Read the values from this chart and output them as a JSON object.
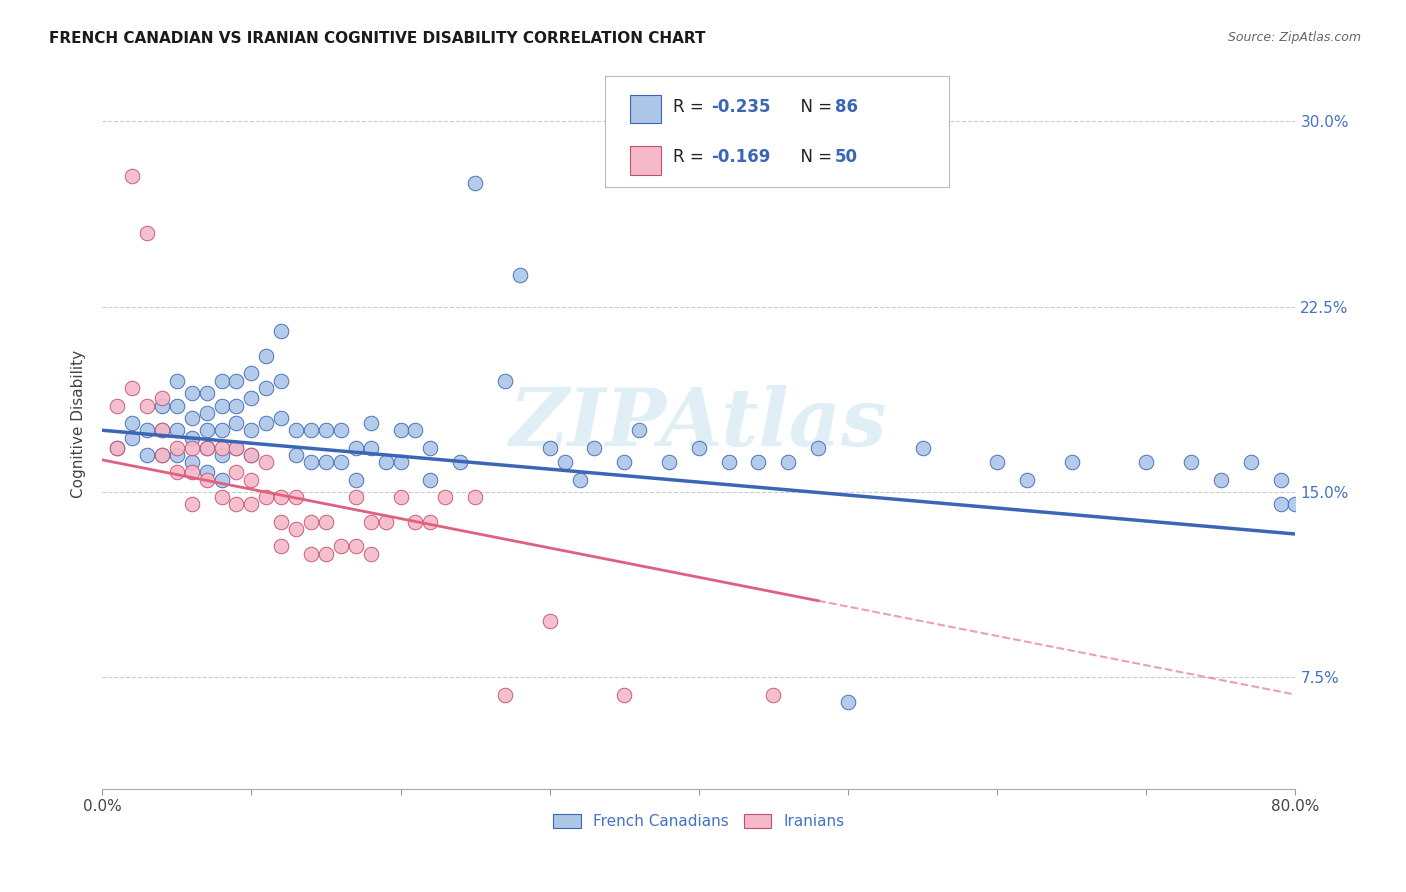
{
  "title": "FRENCH CANADIAN VS IRANIAN COGNITIVE DISABILITY CORRELATION CHART",
  "source": "Source: ZipAtlas.com",
  "ylabel": "Cognitive Disability",
  "ytick_labels": [
    "7.5%",
    "15.0%",
    "22.5%",
    "30.0%"
  ],
  "ytick_values": [
    0.075,
    0.15,
    0.225,
    0.3
  ],
  "xlim": [
    0.0,
    0.8
  ],
  "ylim": [
    0.03,
    0.325
  ],
  "legend_french_r": "-0.235",
  "legend_french_n": "86",
  "legend_iranian_r": "-0.169",
  "legend_iranian_n": "50",
  "french_color": "#adc6e8",
  "iranian_color": "#f5b8c8",
  "french_line_color": "#3a66b5",
  "iranian_line_color": "#e06080",
  "french_line_start_y": 0.175,
  "french_line_end_y": 0.133,
  "iranian_line_start_y": 0.163,
  "iranian_line_end_y": 0.068,
  "french_scatter_x": [
    0.01,
    0.02,
    0.02,
    0.03,
    0.03,
    0.04,
    0.04,
    0.04,
    0.05,
    0.05,
    0.05,
    0.05,
    0.06,
    0.06,
    0.06,
    0.06,
    0.07,
    0.07,
    0.07,
    0.07,
    0.07,
    0.08,
    0.08,
    0.08,
    0.08,
    0.08,
    0.09,
    0.09,
    0.09,
    0.09,
    0.1,
    0.1,
    0.1,
    0.1,
    0.11,
    0.11,
    0.11,
    0.12,
    0.12,
    0.12,
    0.13,
    0.13,
    0.14,
    0.14,
    0.15,
    0.15,
    0.16,
    0.16,
    0.17,
    0.17,
    0.18,
    0.18,
    0.19,
    0.2,
    0.2,
    0.21,
    0.22,
    0.22,
    0.24,
    0.25,
    0.27,
    0.28,
    0.3,
    0.31,
    0.32,
    0.33,
    0.35,
    0.36,
    0.38,
    0.4,
    0.42,
    0.44,
    0.46,
    0.48,
    0.5,
    0.55,
    0.6,
    0.62,
    0.65,
    0.7,
    0.73,
    0.75,
    0.77,
    0.79,
    0.79,
    0.8
  ],
  "french_scatter_y": [
    0.168,
    0.172,
    0.178,
    0.175,
    0.165,
    0.185,
    0.175,
    0.165,
    0.195,
    0.185,
    0.175,
    0.165,
    0.19,
    0.18,
    0.172,
    0.162,
    0.19,
    0.182,
    0.175,
    0.168,
    0.158,
    0.195,
    0.185,
    0.175,
    0.165,
    0.155,
    0.195,
    0.185,
    0.178,
    0.168,
    0.198,
    0.188,
    0.175,
    0.165,
    0.205,
    0.192,
    0.178,
    0.215,
    0.195,
    0.18,
    0.175,
    0.165,
    0.175,
    0.162,
    0.175,
    0.162,
    0.175,
    0.162,
    0.168,
    0.155,
    0.178,
    0.168,
    0.162,
    0.175,
    0.162,
    0.175,
    0.168,
    0.155,
    0.162,
    0.275,
    0.195,
    0.238,
    0.168,
    0.162,
    0.155,
    0.168,
    0.162,
    0.175,
    0.162,
    0.168,
    0.162,
    0.162,
    0.162,
    0.168,
    0.065,
    0.168,
    0.162,
    0.155,
    0.162,
    0.162,
    0.162,
    0.155,
    0.162,
    0.155,
    0.145,
    0.145
  ],
  "iranian_scatter_x": [
    0.01,
    0.01,
    0.02,
    0.02,
    0.03,
    0.03,
    0.04,
    0.04,
    0.04,
    0.05,
    0.05,
    0.06,
    0.06,
    0.06,
    0.07,
    0.07,
    0.08,
    0.08,
    0.09,
    0.09,
    0.09,
    0.1,
    0.1,
    0.1,
    0.11,
    0.11,
    0.12,
    0.12,
    0.12,
    0.13,
    0.13,
    0.14,
    0.14,
    0.15,
    0.15,
    0.16,
    0.17,
    0.17,
    0.18,
    0.18,
    0.19,
    0.2,
    0.21,
    0.22,
    0.23,
    0.25,
    0.27,
    0.3,
    0.35,
    0.45
  ],
  "iranian_scatter_y": [
    0.185,
    0.168,
    0.278,
    0.192,
    0.185,
    0.255,
    0.175,
    0.188,
    0.165,
    0.168,
    0.158,
    0.168,
    0.158,
    0.145,
    0.168,
    0.155,
    0.168,
    0.148,
    0.168,
    0.158,
    0.145,
    0.165,
    0.155,
    0.145,
    0.162,
    0.148,
    0.148,
    0.138,
    0.128,
    0.148,
    0.135,
    0.138,
    0.125,
    0.138,
    0.125,
    0.128,
    0.148,
    0.128,
    0.138,
    0.125,
    0.138,
    0.148,
    0.138,
    0.138,
    0.148,
    0.148,
    0.068,
    0.098,
    0.068,
    0.068
  ]
}
